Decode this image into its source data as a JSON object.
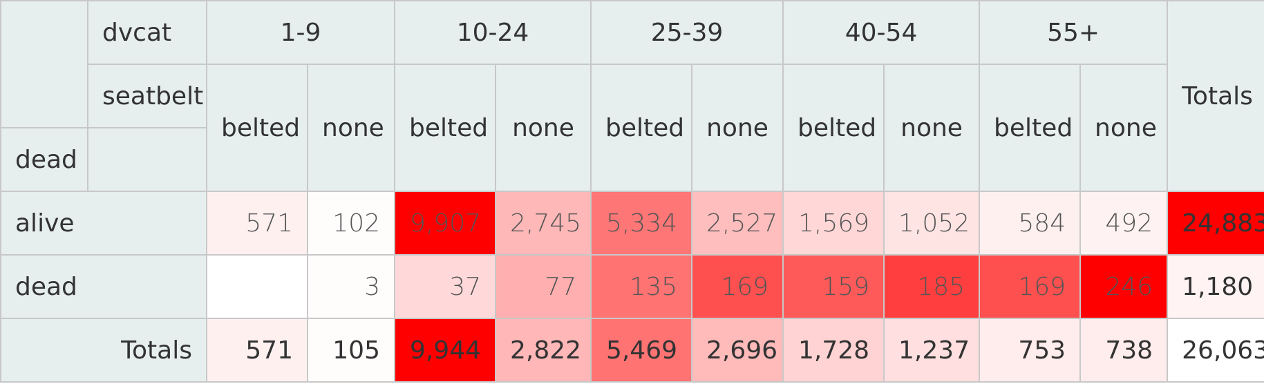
{
  "chart_data": {
    "type": "table",
    "col_var": "dvcat",
    "sub_var": "seatbelt",
    "row_var": "dead",
    "col_groups": [
      "1-9",
      "10-24",
      "25-39",
      "40-54",
      "55+"
    ],
    "sub_cols": [
      "belted",
      "none",
      "belted",
      "none",
      "belted",
      "none",
      "belted",
      "none",
      "belted",
      "none"
    ],
    "totals_label": "Totals",
    "rows": [
      {
        "label": "alive",
        "values": [
          571,
          102,
          9907,
          2745,
          5334,
          2527,
          1569,
          1052,
          584,
          492
        ],
        "display": [
          "571",
          "102",
          "9,907",
          "2,745",
          "5,334",
          "2,527",
          "1,569",
          "1,052",
          "584",
          "492"
        ],
        "total": "24,883"
      },
      {
        "label": "dead",
        "values": [
          null,
          3,
          37,
          77,
          135,
          169,
          159,
          185,
          169,
          246
        ],
        "display": [
          "",
          "3",
          "37",
          "77",
          "135",
          "169",
          "159",
          "185",
          "169",
          "246"
        ],
        "total": "1,180"
      }
    ],
    "col_totals": [
      571,
      105,
      9944,
      2822,
      5469,
      2696,
      1728,
      1237,
      753,
      738
    ],
    "col_totals_display": [
      "571",
      "105",
      "9,944",
      "2,822",
      "5,469",
      "2,696",
      "1,728",
      "1,237",
      "753",
      "738"
    ],
    "grand_total": "26,063",
    "row_totals": [
      24883,
      1180
    ],
    "heatmap_color": "#ff0000"
  }
}
